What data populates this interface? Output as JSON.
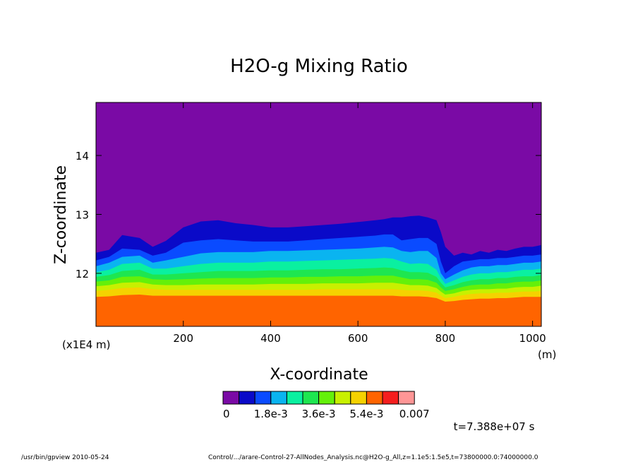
{
  "chart_data": {
    "type": "heatmap",
    "title": "H2O-g Mixing Ratio",
    "xlabel": "X-coordinate",
    "ylabel": "Z-coordinate",
    "x_unit": "(m)",
    "y_unit": "(x1E4 m)",
    "xlim": [
      0,
      1020
    ],
    "ylim": [
      11.1,
      14.9
    ],
    "x_ticks": [
      200,
      400,
      600,
      800,
      1000
    ],
    "y_ticks": [
      12,
      13,
      14
    ],
    "colorbar": {
      "colors": [
        "#7a0aa5",
        "#0a0ac8",
        "#0a4bff",
        "#0ab4f0",
        "#0af0a0",
        "#1ee650",
        "#64f00a",
        "#c8f000",
        "#f5d200",
        "#ff6400",
        "#f51e1e",
        "#ff9696"
      ],
      "labels": [
        "0",
        "1.8e-3",
        "3.6e-3",
        "5.4e-3",
        "0.007"
      ]
    },
    "x_profile": [
      0,
      30,
      60,
      100,
      130,
      160,
      200,
      240,
      280,
      320,
      360,
      400,
      440,
      480,
      520,
      560,
      600,
      640,
      660,
      680,
      700,
      720,
      740,
      760,
      780,
      790,
      800,
      820,
      840,
      860,
      880,
      900,
      920,
      940,
      960,
      980,
      1000,
      1020
    ],
    "z_contours": [
      {
        "level": "band-1",
        "z": [
          12.35,
          12.4,
          12.65,
          12.6,
          12.45,
          12.55,
          12.78,
          12.88,
          12.9,
          12.85,
          12.82,
          12.78,
          12.78,
          12.8,
          12.82,
          12.84,
          12.87,
          12.9,
          12.92,
          12.95,
          12.95,
          12.97,
          12.98,
          12.95,
          12.9,
          12.7,
          12.45,
          12.3,
          12.35,
          12.32,
          12.38,
          12.35,
          12.4,
          12.38,
          12.42,
          12.45,
          12.45,
          12.48
        ]
      },
      {
        "level": "band-2",
        "z": [
          12.22,
          12.28,
          12.42,
          12.4,
          12.3,
          12.35,
          12.52,
          12.56,
          12.58,
          12.56,
          12.54,
          12.54,
          12.54,
          12.56,
          12.58,
          12.6,
          12.62,
          12.64,
          12.66,
          12.66,
          12.56,
          12.58,
          12.6,
          12.6,
          12.5,
          12.2,
          12.0,
          12.12,
          12.2,
          12.22,
          12.24,
          12.24,
          12.26,
          12.26,
          12.28,
          12.3,
          12.3,
          12.32
        ]
      },
      {
        "level": "band-3",
        "z": [
          12.12,
          12.18,
          12.28,
          12.3,
          12.18,
          12.22,
          12.28,
          12.34,
          12.36,
          12.36,
          12.36,
          12.38,
          12.38,
          12.39,
          12.4,
          12.41,
          12.42,
          12.44,
          12.45,
          12.44,
          12.38,
          12.36,
          12.38,
          12.38,
          12.26,
          12.0,
          11.9,
          11.98,
          12.05,
          12.1,
          12.12,
          12.12,
          12.14,
          12.14,
          12.16,
          12.18,
          12.18,
          12.2
        ]
      },
      {
        "level": "band-4",
        "z": [
          12.02,
          12.06,
          12.16,
          12.18,
          12.08,
          12.08,
          12.12,
          12.16,
          12.18,
          12.18,
          12.18,
          12.2,
          12.2,
          12.21,
          12.22,
          12.23,
          12.24,
          12.25,
          12.26,
          12.25,
          12.2,
          12.16,
          12.17,
          12.16,
          12.06,
          11.92,
          11.82,
          11.88,
          11.94,
          11.98,
          12.0,
          12.0,
          12.02,
          12.02,
          12.04,
          12.06,
          12.06,
          12.08
        ]
      },
      {
        "level": "band-5",
        "z": [
          11.94,
          11.97,
          12.04,
          12.06,
          11.98,
          11.98,
          12.0,
          12.02,
          12.04,
          12.04,
          12.04,
          12.05,
          12.05,
          12.06,
          12.07,
          12.07,
          12.08,
          12.09,
          12.1,
          12.09,
          12.05,
          12.02,
          12.02,
          12.01,
          11.94,
          11.84,
          11.76,
          11.8,
          11.85,
          11.88,
          11.9,
          11.9,
          11.92,
          11.92,
          11.94,
          11.95,
          11.95,
          11.97
        ]
      },
      {
        "level": "band-6",
        "z": [
          11.86,
          11.88,
          11.94,
          11.95,
          11.9,
          11.89,
          11.9,
          11.91,
          11.92,
          11.92,
          11.92,
          11.93,
          11.93,
          11.94,
          11.94,
          11.95,
          11.95,
          11.96,
          11.96,
          11.96,
          11.93,
          11.9,
          11.9,
          11.89,
          11.84,
          11.76,
          11.7,
          11.73,
          11.77,
          11.8,
          11.81,
          11.81,
          11.83,
          11.83,
          11.85,
          11.86,
          11.86,
          11.88
        ]
      },
      {
        "level": "band-7",
        "z": [
          11.78,
          11.8,
          11.84,
          11.85,
          11.81,
          11.8,
          11.8,
          11.81,
          11.81,
          11.81,
          11.81,
          11.82,
          11.82,
          11.82,
          11.83,
          11.83,
          11.83,
          11.84,
          11.84,
          11.84,
          11.82,
          11.8,
          11.8,
          11.79,
          11.75,
          11.69,
          11.64,
          11.66,
          11.7,
          11.72,
          11.73,
          11.73,
          11.74,
          11.74,
          11.76,
          11.77,
          11.77,
          11.79
        ]
      },
      {
        "level": "band-8",
        "z": [
          11.7,
          11.72,
          11.75,
          11.76,
          11.73,
          11.72,
          11.72,
          11.72,
          11.72,
          11.72,
          11.72,
          11.72,
          11.72,
          11.72,
          11.73,
          11.73,
          11.73,
          11.73,
          11.73,
          11.73,
          11.72,
          11.71,
          11.71,
          11.7,
          11.67,
          11.62,
          11.58,
          11.6,
          11.63,
          11.65,
          11.66,
          11.66,
          11.67,
          11.67,
          11.68,
          11.69,
          11.69,
          11.7
        ]
      },
      {
        "level": "band-9",
        "z": [
          11.6,
          11.61,
          11.63,
          11.64,
          11.62,
          11.62,
          11.62,
          11.62,
          11.62,
          11.62,
          11.62,
          11.62,
          11.62,
          11.62,
          11.62,
          11.62,
          11.62,
          11.62,
          11.62,
          11.62,
          11.61,
          11.61,
          11.61,
          11.6,
          11.58,
          11.55,
          11.52,
          11.53,
          11.55,
          11.56,
          11.57,
          11.57,
          11.58,
          11.58,
          11.59,
          11.6,
          11.6,
          11.6
        ]
      }
    ]
  },
  "annotations": {
    "time": "t=7.388e+07 s",
    "footer_left": "/usr/bin/gpview  2010-05-24",
    "footer_right": "Control/.../arare-Control-27-AllNodes_Analysis.nc@H2O-g_All,z=1.1e5:1.5e5,t=73800000.0:74000000.0"
  }
}
